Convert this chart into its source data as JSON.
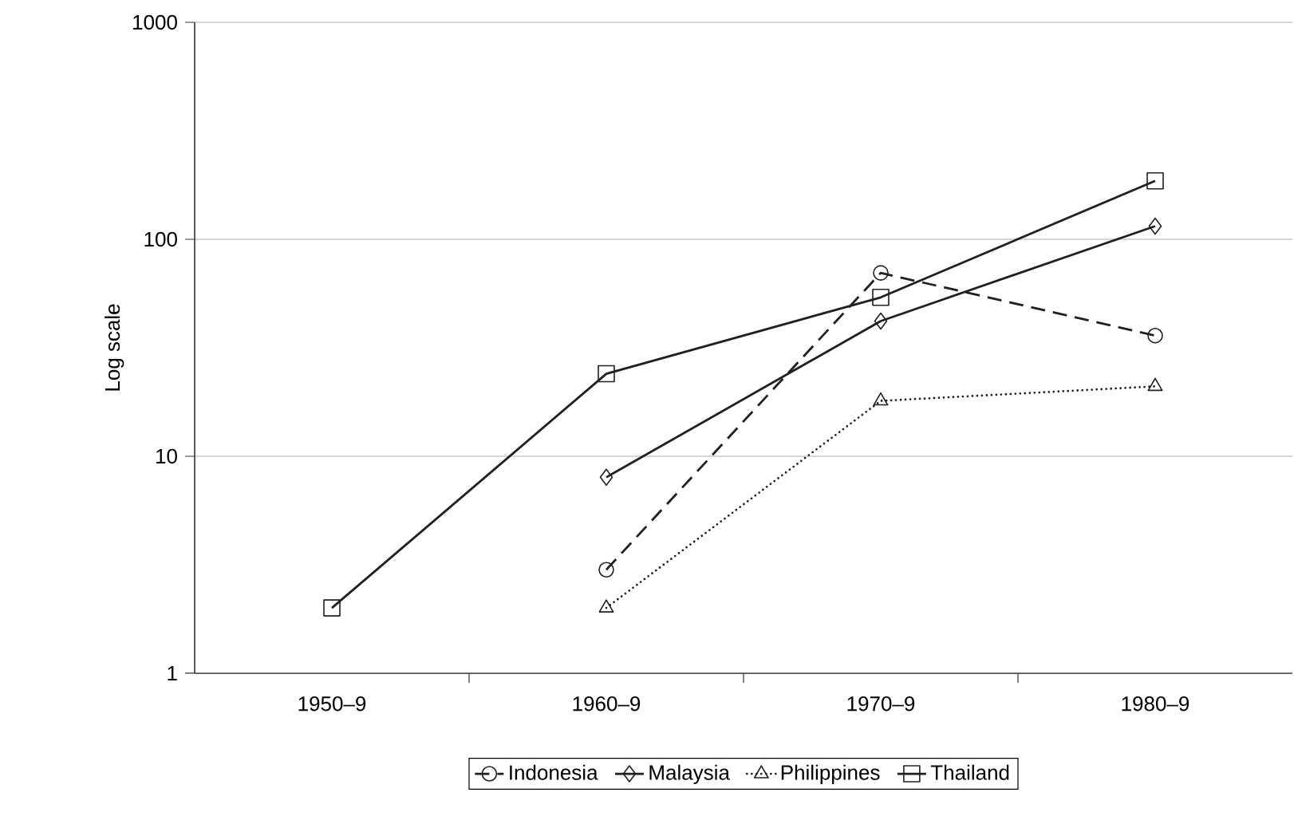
{
  "chart_data": {
    "type": "line",
    "ylabel": "Log scale",
    "categories": [
      "1950–9",
      "1960–9",
      "1970–9",
      "1980–9"
    ],
    "log": true,
    "ylim": [
      1,
      1000
    ],
    "yticks": [
      1,
      10,
      100,
      1000
    ],
    "grid": "y",
    "legend": "bottom",
    "series": [
      {
        "name": "Indonesia",
        "color": "#231f20",
        "marker": "circle",
        "line_style": "dashed",
        "values": [
          null,
          3,
          70,
          36
        ]
      },
      {
        "name": "Malaysia",
        "color": "#231f20",
        "marker": "diamond",
        "line_style": "solid",
        "values": [
          null,
          8,
          42,
          115
        ]
      },
      {
        "name": "Philippines",
        "color": "#231f20",
        "marker": "triangle",
        "line_style": "dotted",
        "values": [
          null,
          2,
          18,
          21
        ]
      },
      {
        "name": "Thailand",
        "color": "#231f20",
        "marker": "square",
        "line_style": "solid",
        "values": [
          2,
          24,
          54,
          186
        ]
      }
    ]
  }
}
